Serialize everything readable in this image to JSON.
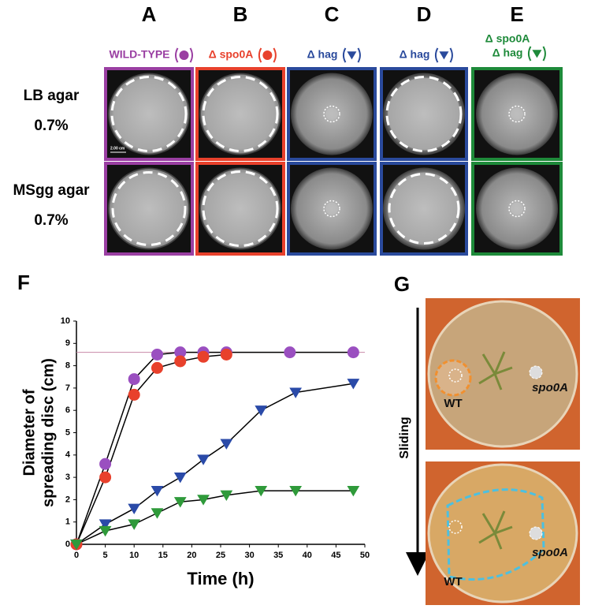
{
  "columns": [
    {
      "letter": "A",
      "genotype": [
        "WILD-TYPE"
      ],
      "color": "#9a3fa2",
      "marker": "circle"
    },
    {
      "letter": "B",
      "genotype": [
        "Δ spo0A"
      ],
      "color": "#e8412c",
      "marker": "circle"
    },
    {
      "letter": "C",
      "genotype": [
        "Δ hag"
      ],
      "color": "#2a4a9c",
      "marker": "triangle"
    },
    {
      "letter": "D",
      "genotype": [
        "Δ hag"
      ],
      "color": "#2a4a9c",
      "marker": "triangle"
    },
    {
      "letter": "E",
      "genotype": [
        "Δ spo0A",
        "Δ hag"
      ],
      "color": "#1e8a3a",
      "marker": "triangle"
    }
  ],
  "rows": [
    [
      "LB agar",
      "0.7%"
    ],
    [
      "MSgg agar",
      "0.7%"
    ]
  ],
  "scale_bar": "2.00 cm",
  "chart_label": "F",
  "chart_data": {
    "type": "line",
    "xlabel": "Time (h)",
    "ylabel": [
      "Diameter of",
      "spreading disc (cm)"
    ],
    "xlim": [
      0,
      50
    ],
    "xticks": [
      0,
      5,
      10,
      15,
      20,
      25,
      30,
      35,
      40,
      45,
      50
    ],
    "ylim": [
      0,
      10
    ],
    "yticks": [
      0,
      1,
      2,
      3,
      4,
      5,
      6,
      7,
      8,
      9,
      10
    ],
    "reference_line": 8.6,
    "reference_color": "#c88aa8",
    "series": [
      {
        "color": "#9a4fc0",
        "marker": "circle",
        "x": [
          0,
          5,
          10,
          14,
          18,
          22,
          26,
          37,
          48
        ],
        "values": [
          0,
          3.6,
          7.4,
          8.5,
          8.6,
          8.6,
          8.6,
          8.6,
          8.6
        ]
      },
      {
        "color": "#e8412c",
        "marker": "circle",
        "x": [
          0,
          5,
          10,
          14,
          18,
          22,
          26
        ],
        "values": [
          0,
          3.0,
          6.7,
          7.9,
          8.2,
          8.4,
          8.5
        ]
      },
      {
        "color": "#2a4aa8",
        "marker": "triangle",
        "x": [
          0,
          5,
          10,
          14,
          18,
          22,
          26,
          32,
          38,
          48
        ],
        "values": [
          0,
          0.9,
          1.6,
          2.4,
          3.0,
          3.8,
          4.5,
          6.0,
          6.8,
          7.2
        ]
      },
      {
        "color": "#2f9a3a",
        "marker": "triangle",
        "x": [
          0,
          5,
          10,
          14,
          18,
          22,
          26,
          32,
          38,
          48
        ],
        "values": [
          0,
          0.6,
          0.9,
          1.4,
          1.9,
          2.0,
          2.2,
          2.4,
          2.4,
          2.4
        ]
      }
    ]
  },
  "photo_panel": {
    "label": "G",
    "arrow_label": "Sliding",
    "photos": [
      {
        "wt": "WT",
        "mutant": "spo0A"
      },
      {
        "wt": "WT",
        "mutant": "spo0A"
      }
    ]
  }
}
